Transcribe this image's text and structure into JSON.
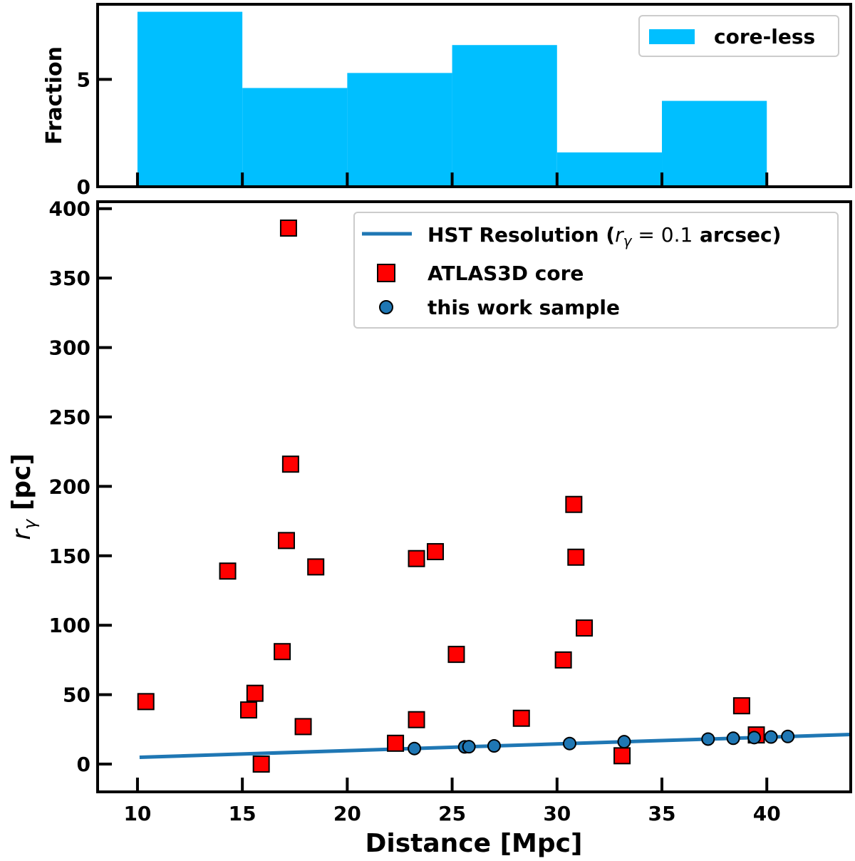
{
  "colors": {
    "histogram": "#00bfff",
    "resolution_line": "#1f77b4",
    "atlas_marker": "#ff0000",
    "sample_marker": "#1f77b4",
    "axis": "#000000"
  },
  "chart_data": [
    {
      "type": "bar",
      "panel": "top",
      "title": "",
      "ylabel": "Fraction",
      "xlabel": "",
      "xlim": [
        8.1,
        44
      ],
      "ylim": [
        0,
        8.5
      ],
      "yticks": [
        0,
        5
      ],
      "xtick_positions": [
        10,
        15,
        20,
        25,
        30,
        35,
        40
      ],
      "legend_position": "top-right",
      "series": [
        {
          "name": "core-less",
          "bin_edges": [
            10,
            15,
            20,
            25,
            30,
            35,
            40
          ],
          "values": [
            8.15,
            4.6,
            5.3,
            6.6,
            1.6,
            4.0
          ]
        }
      ]
    },
    {
      "type": "scatter",
      "panel": "bottom",
      "title": "",
      "xlabel": "Distance [Mpc]",
      "ylabel_main": "r",
      "ylabel_sub": "γ",
      "ylabel_rest": " [pc]",
      "xlim": [
        8.1,
        44
      ],
      "ylim": [
        -20,
        405
      ],
      "xticks": [
        10,
        15,
        20,
        25,
        30,
        35,
        40
      ],
      "yticks": [
        0,
        50,
        100,
        150,
        200,
        250,
        300,
        350,
        400
      ],
      "legend_position": "top-right",
      "legend": {
        "line_label_pre": "HST Resolution (",
        "line_label_math_r": "r",
        "line_label_math_sub": "γ",
        "line_label_math_rest": " = 0.1",
        "line_label_post": " arcsec)",
        "atlas_label": "ATLAS3D core",
        "sample_label": "this work sample"
      },
      "series": [
        {
          "name": "HST Resolution (r_γ = 0.1 arcsec)",
          "kind": "line",
          "x": [
            10.1,
            44
          ],
          "y": [
            4.9,
            21.3
          ]
        },
        {
          "name": "ATLAS3D core",
          "kind": "square",
          "x": [
            10.4,
            14.3,
            15.3,
            15.6,
            15.9,
            16.9,
            17.1,
            17.3,
            17.2,
            17.9,
            18.5,
            22.3,
            23.3,
            23.3,
            24.2,
            25.2,
            28.3,
            30.3,
            30.8,
            30.9,
            31.3,
            33.1,
            38.8,
            39.5
          ],
          "y": [
            45,
            139,
            39,
            51,
            0,
            81,
            161,
            216,
            386,
            27,
            142,
            15,
            148,
            32,
            153,
            79,
            33,
            75,
            187,
            149,
            98,
            6,
            42,
            21
          ]
        },
        {
          "name": "this work sample",
          "kind": "circle",
          "x": [
            23.2,
            25.6,
            25.8,
            27.0,
            30.6,
            33.2,
            37.2,
            38.4,
            39.4,
            40.2,
            41.0
          ],
          "y": [
            11.2,
            12.4,
            12.5,
            13.1,
            14.8,
            16.1,
            18.0,
            18.6,
            19.1,
            19.5,
            19.9
          ]
        }
      ]
    }
  ]
}
